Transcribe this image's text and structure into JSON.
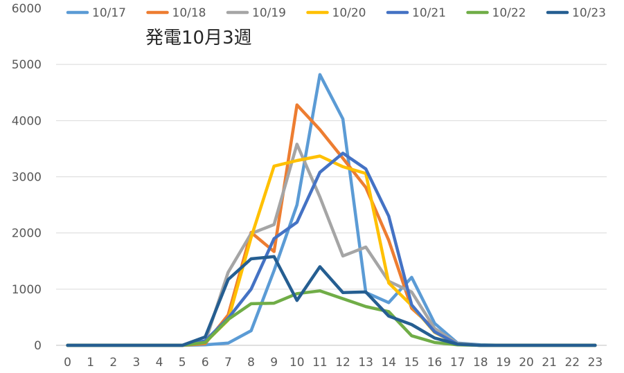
{
  "chart_data": {
    "type": "line",
    "title": "発電10月3週",
    "xlabel": "",
    "ylabel": "",
    "ylim": [
      0,
      6000
    ],
    "yticks": [
      0,
      1000,
      2000,
      3000,
      4000,
      5000,
      6000
    ],
    "x": [
      0,
      1,
      2,
      3,
      4,
      5,
      6,
      7,
      8,
      9,
      10,
      11,
      12,
      13,
      14,
      15,
      16,
      17,
      18,
      19,
      20,
      21,
      22,
      23
    ],
    "grid": "horizontal",
    "legend_position": "top",
    "series": [
      {
        "name": "10/17",
        "color": "#5B9BD5",
        "values": [
          0,
          0,
          0,
          0,
          0,
          0,
          10,
          40,
          260,
          1330,
          2500,
          4820,
          4030,
          940,
          760,
          1210,
          390,
          40,
          10,
          0,
          0,
          0,
          0,
          0
        ]
      },
      {
        "name": "10/18",
        "color": "#ED7D31",
        "values": [
          0,
          0,
          0,
          0,
          0,
          0,
          30,
          540,
          2010,
          1670,
          4280,
          3840,
          3330,
          2810,
          1870,
          660,
          290,
          30,
          0,
          0,
          0,
          0,
          0,
          0
        ]
      },
      {
        "name": "10/19",
        "color": "#A5A5A5",
        "values": [
          0,
          0,
          0,
          0,
          0,
          0,
          60,
          1300,
          1990,
          2150,
          3580,
          2640,
          1590,
          1750,
          1140,
          950,
          300,
          30,
          0,
          0,
          0,
          0,
          0,
          0
        ]
      },
      {
        "name": "10/20",
        "color": "#FFC000",
        "values": [
          0,
          0,
          0,
          0,
          0,
          0,
          50,
          450,
          1920,
          3190,
          3290,
          3370,
          3180,
          3060,
          1110,
          710,
          230,
          20,
          0,
          0,
          0,
          0,
          0,
          0
        ]
      },
      {
        "name": "10/21",
        "color": "#4472C4",
        "values": [
          0,
          0,
          0,
          0,
          0,
          0,
          80,
          480,
          1000,
          1900,
          2190,
          3080,
          3420,
          3140,
          2300,
          720,
          240,
          20,
          0,
          0,
          0,
          0,
          0,
          0
        ]
      },
      {
        "name": "10/22",
        "color": "#70AD47",
        "values": [
          0,
          0,
          0,
          0,
          0,
          0,
          50,
          460,
          740,
          750,
          920,
          970,
          830,
          690,
          600,
          170,
          50,
          10,
          0,
          0,
          0,
          0,
          0,
          0
        ]
      },
      {
        "name": "10/23",
        "color": "#255E91",
        "values": [
          0,
          0,
          0,
          0,
          0,
          0,
          150,
          1170,
          1540,
          1580,
          800,
          1400,
          940,
          950,
          520,
          370,
          130,
          20,
          0,
          0,
          0,
          0,
          0,
          0
        ]
      }
    ]
  }
}
